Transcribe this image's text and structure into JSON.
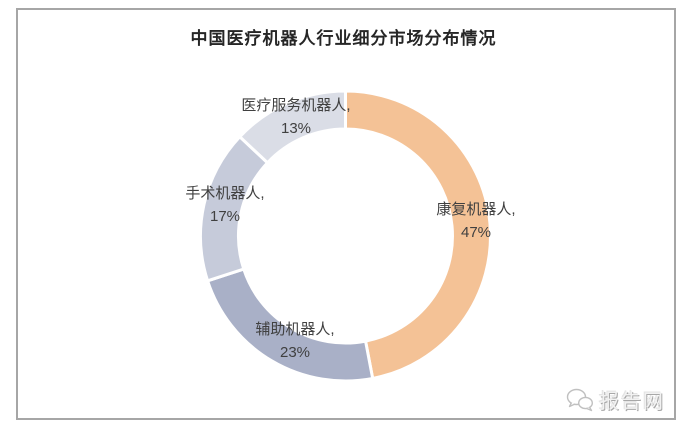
{
  "title": "中国医疗机器人行业细分市场分布情况",
  "chart_data": {
    "type": "pie",
    "subtype": "donut",
    "title": "中国医疗机器人行业细分市场分布情况",
    "categories": [
      "康复机器人",
      "辅助机器人",
      "手术机器人",
      "医疗服务机器人"
    ],
    "values": [
      47,
      23,
      17,
      13
    ],
    "unit": "%",
    "start_angle_deg": 0,
    "direction": "clockwise",
    "inner_radius_ratio": 0.74,
    "legend": "none",
    "segments": [
      {
        "name": "康复机器人",
        "value": 47,
        "label_line1": "康复机器人,",
        "label_line2": "47%",
        "color": "#F4C296"
      },
      {
        "name": "辅助机器人",
        "value": 23,
        "label_line1": "辅助机器人,",
        "label_line2": "23%",
        "color": "#A9B0C7"
      },
      {
        "name": "手术机器人",
        "value": 17,
        "label_line1": "手术机器人,",
        "label_line2": "17%",
        "color": "#C6CBDA"
      },
      {
        "name": "医疗服务机器人",
        "value": 13,
        "label_line1": "医疗服务机器人,",
        "label_line2": "13%",
        "color": "#DADDE6"
      }
    ]
  },
  "watermark": {
    "text": "报告网",
    "icon": "chat-bubbles-icon"
  },
  "colors": {
    "border": "#A6A6A6",
    "title_text": "#262626",
    "label_text": "#404040",
    "background": "#FFFFFF",
    "separator": "#FFFFFF"
  }
}
